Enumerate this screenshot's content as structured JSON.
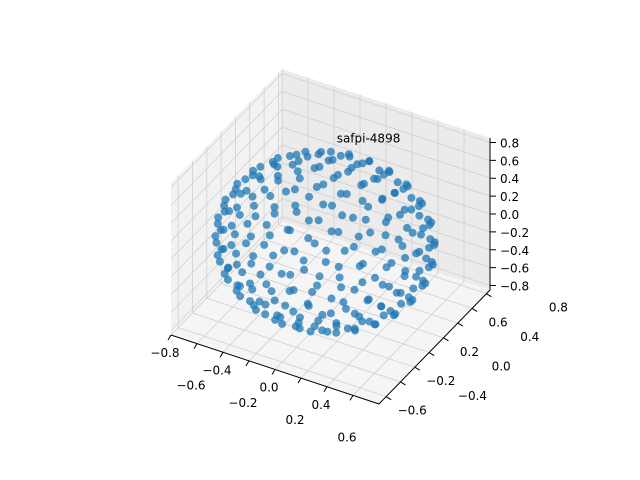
{
  "chart_data": {
    "type": "scatter3d",
    "title": "",
    "xlabel": "",
    "ylabel": "",
    "zlabel": "",
    "xlim": [
      -0.8,
      0.8
    ],
    "ylim": [
      -0.7,
      0.85
    ],
    "zlim": [
      -0.85,
      0.85
    ],
    "x_ticks": [
      "−0.8",
      "−0.6",
      "−0.4",
      "−0.2",
      "0.0",
      "0.2",
      "0.4",
      "0.6"
    ],
    "x_tick_values": [
      -0.8,
      -0.6,
      -0.4,
      -0.2,
      0.0,
      0.2,
      0.4,
      0.6
    ],
    "y_ticks": [
      "−0.6",
      "−0.4",
      "−0.2",
      "0.0",
      "0.2",
      "0.4",
      "0.6",
      "0.8"
    ],
    "y_tick_values": [
      -0.6,
      -0.4,
      -0.2,
      0.0,
      0.2,
      0.4,
      0.6,
      0.8
    ],
    "z_ticks": [
      "−0.8",
      "−0.6",
      "−0.4",
      "−0.2",
      "0.0",
      "0.2",
      "0.4",
      "0.6",
      "0.8"
    ],
    "z_tick_values": [
      -0.8,
      -0.6,
      -0.4,
      -0.2,
      0.0,
      0.2,
      0.4,
      0.6,
      0.8
    ],
    "grid": true,
    "point_color": "#1f77b4",
    "label_color": "#000000",
    "point_labels_visible": [
      "safpi-4898"
    ],
    "shape": "points distributed on a sphere, each annotated with a text label"
  }
}
